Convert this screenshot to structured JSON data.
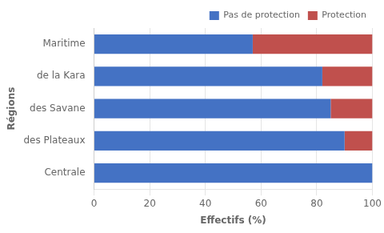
{
  "chart_data": {
    "type": "bar",
    "orientation": "horizontal",
    "stacked": true,
    "xlabel": "Effectifs (%)",
    "ylabel": "Régions",
    "categories": [
      "Centrale",
      "des Plateaux",
      "des Savane",
      "de la Kara",
      "Maritime"
    ],
    "series": [
      {
        "name": "Pas de protection",
        "color": "#4472C4",
        "values": [
          100,
          90,
          85,
          82,
          57
        ]
      },
      {
        "name": "Protection",
        "color": "#C0504D",
        "values": [
          0,
          10,
          15,
          18,
          43
        ]
      }
    ],
    "xlim": [
      0,
      100
    ],
    "xticks": [
      0,
      20,
      40,
      60,
      80,
      100
    ],
    "grid": true,
    "legend": "upper right"
  }
}
